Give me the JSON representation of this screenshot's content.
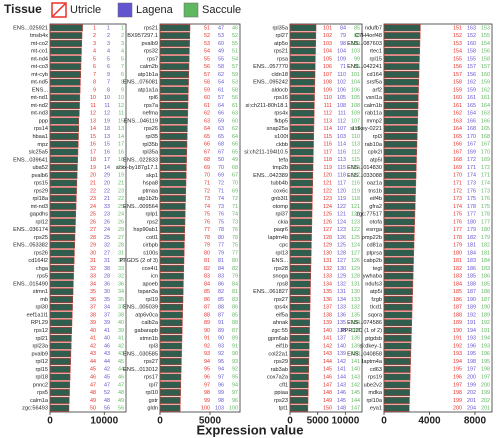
{
  "chart_data": {
    "type": "bar",
    "legend_title": "Tissue",
    "legend": [
      {
        "name": "Utricle",
        "color": "#e8302a"
      },
      {
        "name": "Lagena",
        "color": "#6355d0"
      },
      {
        "name": "Saccule",
        "color": "#5fb85f"
      }
    ],
    "xlabel": "Expression value",
    "bar_color": "#2f5d4e",
    "bar_edge": "#d9322b",
    "panels": [
      {
        "categories": [
          "ENS...025921",
          "tmsb4x",
          "mt-co2",
          "mt-co1",
          "mt-nd4",
          "mt-co3",
          "mt-cyb",
          "mt-nd5",
          "ENS...",
          "mt-nd1",
          "mt-nd2",
          "mt-nd3",
          "ppp",
          "rps14",
          "hbaa1",
          "mpz",
          "slc25a5",
          "ENS...039641",
          "uba52",
          "pvalb6",
          "rps15",
          "rps29",
          "rpl18a",
          "mt-nd3",
          "gapdhs",
          "rpl12",
          "ENS...036174",
          "rps25",
          "ENS...053382",
          "rps26",
          "cd164l2",
          "chga",
          "rps5",
          "ENS...015490",
          "stmn1",
          "mb",
          "rpl30",
          "eef1a1l1",
          "RPL29",
          "rps12",
          "rpl21",
          "rpl23a",
          "pvalb9",
          "rpl12",
          "rpl15",
          "rpl18",
          "pnnc2",
          "rps5",
          "calm1a",
          "zgc:56493"
        ],
        "values": [
          6000,
          5900,
          5850,
          5800,
          5750,
          5700,
          5650,
          5600,
          5550,
          5500,
          5450,
          5400,
          5300,
          5300,
          5250,
          5200,
          5150,
          5100,
          5050,
          5000,
          4950,
          4900,
          4850,
          4800,
          4750,
          4700,
          4650,
          4600,
          4550,
          4500,
          4450,
          4400,
          4350,
          4300,
          4250,
          4200,
          4150,
          4100,
          4050,
          4000,
          3950,
          3900,
          3850,
          3800,
          3750,
          3700,
          3650,
          3600,
          3550,
          3500
        ],
        "ranks": [
          [
            1,
            2,
            3,
            4,
            5,
            6,
            7,
            8,
            9,
            10,
            11,
            12,
            13,
            14,
            15,
            16,
            17,
            18,
            19,
            20,
            21,
            22,
            23,
            24,
            25,
            26,
            27,
            28,
            29,
            30,
            31,
            32,
            33,
            34,
            35,
            36,
            37,
            38,
            39,
            40,
            41,
            42,
            43,
            44,
            45,
            46,
            47,
            48,
            49,
            50
          ],
          [
            1,
            2,
            3,
            4,
            5,
            6,
            9,
            7,
            8,
            10,
            11,
            12,
            19,
            18,
            13,
            15,
            16,
            17,
            14,
            29,
            20,
            22,
            21,
            33,
            23,
            26,
            24,
            25,
            32,
            27,
            31,
            38,
            28,
            36,
            30,
            35,
            34,
            37,
            39,
            41,
            40,
            46,
            43,
            44,
            42,
            45,
            47,
            52,
            48,
            56
          ],
          [
            1,
            2,
            3,
            4,
            5,
            7,
            6,
            8,
            9,
            10,
            12,
            11,
            15,
            13,
            14,
            17,
            16,
            18,
            20,
            19,
            21,
            23,
            22,
            25,
            24,
            26,
            29,
            27,
            28,
            31,
            30,
            33,
            32,
            36,
            34,
            35,
            37,
            38,
            40,
            39,
            41,
            42,
            43,
            45,
            44,
            46,
            47,
            48,
            49,
            56
          ]
        ],
        "xlim": [
          0,
          14000
        ],
        "xticks": [
          0,
          10000
        ]
      },
      {
        "categories": [
          "rps21",
          "BX957297.1",
          "pvalb9",
          "rps32",
          "rps7",
          "calm2b",
          "atp1b1a",
          "ENS...076081",
          "atp1a1a",
          "rpl6",
          "rps7a",
          "nefma",
          "ENS...046119",
          "rps26",
          "rpl35",
          "rpl35b",
          "rpl35a",
          "ENS...022833",
          "si:xx-by187g17.1",
          "skp1",
          "hspa8",
          "ptmaa",
          "atp1b2b",
          "ENS...009564",
          "rplp1",
          "rps2",
          "hsp90ab1",
          "cotl1",
          "cirbpb",
          "s100s",
          "PTGDS (2 of 3)",
          "cox4i1",
          "icn",
          "apoeb",
          "tspan3a",
          "rpl19",
          "ENS...005039",
          "atp6v0ca",
          "calb2a",
          "gabarapb",
          "stmn1b",
          "rpl3",
          "ENS...030585",
          "rps27",
          "ENS...013012",
          "rps17",
          "rpl7",
          "rpl10",
          "gstr",
          "gldn"
        ],
        "values": [
          3000,
          2980,
          2960,
          2940,
          2920,
          2900,
          2880,
          2860,
          2840,
          2820,
          2800,
          2780,
          2760,
          2740,
          2720,
          2700,
          2680,
          2660,
          2640,
          2620,
          2600,
          2580,
          2560,
          2540,
          2520,
          2500,
          2480,
          2460,
          2440,
          2420,
          2400,
          2380,
          2360,
          2340,
          2320,
          2300,
          2280,
          2260,
          2240,
          2220,
          2200,
          2180,
          2160,
          2140,
          2120,
          2100,
          2080,
          2060,
          2040,
          2020
        ],
        "ranks": [
          [
            51,
            52,
            53,
            54,
            55,
            56,
            57,
            58,
            59,
            60,
            61,
            62,
            63,
            64,
            65,
            66,
            67,
            68,
            69,
            70,
            71,
            72,
            73,
            74,
            75,
            76,
            77,
            78,
            79,
            80,
            81,
            82,
            83,
            84,
            85,
            86,
            87,
            88,
            89,
            90,
            91,
            92,
            93,
            94,
            95,
            96,
            97,
            98,
            99,
            100
          ],
          [
            47,
            53,
            60,
            49,
            55,
            58,
            62,
            54,
            61,
            57,
            64,
            66,
            59,
            63,
            65,
            68,
            67,
            50,
            70,
            69,
            72,
            71,
            74,
            73,
            76,
            75,
            78,
            80,
            77,
            79,
            81,
            84,
            83,
            86,
            82,
            85,
            88,
            87,
            91,
            89,
            90,
            93,
            92,
            95,
            94,
            97,
            96,
            99,
            98,
            103
          ],
          [
            46,
            52,
            55,
            51,
            54,
            57,
            59,
            53,
            58,
            56,
            61,
            63,
            60,
            62,
            64,
            66,
            65,
            49,
            68,
            67,
            70,
            69,
            72,
            71,
            74,
            73,
            76,
            78,
            75,
            77,
            80,
            82,
            79,
            84,
            81,
            83,
            86,
            85,
            88,
            87,
            89,
            91,
            90,
            93,
            92,
            95,
            94,
            97,
            96,
            100
          ]
        ],
        "xlim": [
          0,
          8000
        ],
        "xticks": [
          0,
          5000
        ]
      },
      {
        "categories": [
          "rpl35a",
          "rpl27",
          "atp5o",
          "rps21",
          "rpsa",
          "ENS...057770",
          "cldn18",
          "ENS...095242",
          "aldocb",
          "rps16",
          "si:ch211-80h18.1",
          "rps4x",
          "fkbp5",
          "snap25a",
          "s100t",
          "ckbb",
          "si:ch211-194l10.5",
          "tefa",
          "tmp2b",
          "ENS...042389",
          "tubb4b",
          "cox6c",
          "gnb3l1",
          "otomp",
          "rpl37",
          "ckia",
          "paqr6",
          "laptm4b",
          "cpc",
          "rpl13",
          "ENS...",
          "rps28",
          "snoga",
          "rps8",
          "ENS...061827",
          "rps27",
          "rps4x",
          "eif5a",
          "ahnak",
          "zgc:55",
          "gpm6ab",
          "eif1b",
          "col22a1",
          "rps29",
          "rab3ab",
          "cox7a2a",
          "cfl1",
          "ppiaa",
          "rps23",
          "tpt1"
        ],
        "values": [
          4700,
          4670,
          4640,
          4610,
          4580,
          4550,
          4520,
          4490,
          4460,
          4430,
          4400,
          4370,
          4340,
          4310,
          4280,
          4250,
          4220,
          4190,
          4160,
          4130,
          4100,
          4070,
          4040,
          4010,
          3980,
          3950,
          3920,
          3890,
          3860,
          3830,
          3800,
          3770,
          3740,
          3710,
          3680,
          3650,
          3620,
          3590,
          3560,
          3530,
          3500,
          3470,
          3440,
          3410,
          3380,
          3350,
          3320,
          3290,
          3260,
          3230
        ],
        "ranks": [
          [
            101,
            102,
            103,
            104,
            105,
            106,
            107,
            108,
            109,
            110,
            111,
            112,
            113,
            114,
            115,
            116,
            117,
            118,
            119,
            120,
            121,
            122,
            123,
            124,
            125,
            126,
            127,
            128,
            129,
            130,
            131,
            132,
            133,
            134,
            135,
            136,
            137,
            138,
            139,
            140,
            141,
            142,
            143,
            144,
            145,
            146,
            147,
            148,
            149,
            150
          ],
          [
            84,
            79,
            98,
            104,
            109,
            71,
            110,
            102,
            106,
            105,
            108,
            111,
            112,
            107,
            103,
            114,
            116,
            113,
            115,
            118,
            117,
            120,
            119,
            122,
            121,
            124,
            123,
            126,
            125,
            128,
            127,
            130,
            129,
            132,
            131,
            134,
            133,
            136,
            135,
            138,
            137,
            140,
            139,
            142,
            141,
            144,
            143,
            146,
            145,
            148
          ],
          [
            85,
            88,
            100,
            103,
            99,
            65,
            101,
            104,
            106,
            105,
            108,
            109,
            107,
            111,
            110,
            113,
            112,
            115,
            114,
            117,
            116,
            119,
            118,
            121,
            120,
            123,
            122,
            125,
            124,
            127,
            126,
            129,
            128,
            131,
            130,
            133,
            132,
            135,
            134,
            137,
            136,
            139,
            138,
            141,
            140,
            143,
            142,
            145,
            144,
            147
          ]
        ],
        "xlim": [
          0,
          13000
        ],
        "xticks": [
          0,
          5000,
          10000
        ]
      },
      {
        "categories": [
          "ndufb7",
          "C7H4orf48",
          "ENS...087603",
          "rtec1",
          "rpl15",
          "ENS...042241",
          "cd164",
          "srsf5a",
          "arf2",
          "vsnl1a",
          "calm1b",
          "rab11a",
          "mmp2",
          "si:dkey-0221",
          "rpl3",
          "rab10a",
          "cplx2l",
          "atp5l",
          "ENS...014830",
          "ENS...033088",
          "oaz1a",
          "tns1b",
          "eif4b",
          "gfra2",
          "zgc:77517",
          "otofa",
          "esrrga",
          "pmp22b",
          "cd81a",
          "ptprsa",
          "cabp2b",
          "tegt",
          "ywhaba",
          "ndufs3",
          "atp5i",
          "fzgb",
          "tlcd1",
          "sqora",
          "ENS...074586",
          "PPR12C (1 of 2)",
          "ptgdsb",
          "si:dkey-1",
          "ENS...040858",
          "laptm4a",
          "cd63",
          "rps19",
          "ube2v2",
          "mdka",
          "rpl10a",
          "eya1"
        ],
        "values": [
          3200,
          3180,
          3160,
          3140,
          3120,
          3100,
          3080,
          3060,
          3040,
          3020,
          3000,
          2980,
          2960,
          2940,
          2920,
          2900,
          2880,
          2860,
          2840,
          2820,
          2800,
          2780,
          2760,
          2740,
          2720,
          2700,
          2680,
          2660,
          2640,
          2620,
          2600,
          2580,
          2560,
          2540,
          2520,
          2500,
          2480,
          2460,
          2440,
          2420,
          2400,
          2380,
          2360,
          2340,
          2320,
          2300,
          2280,
          2260,
          2240,
          2220
        ],
        "ranks": [
          [
            151,
            152,
            153,
            154,
            155,
            156,
            157,
            158,
            159,
            160,
            161,
            162,
            163,
            164,
            165,
            166,
            167,
            168,
            169,
            170,
            171,
            172,
            173,
            174,
            175,
            176,
            177,
            178,
            179,
            180,
            181,
            182,
            183,
            184,
            185,
            186,
            187,
            188,
            189,
            190,
            191,
            192,
            193,
            194,
            195,
            196,
            197,
            198,
            199,
            200
          ],
          [
            163,
            152,
            160,
            158,
            155,
            157,
            156,
            162,
            159,
            161,
            165,
            164,
            166,
            168,
            170,
            167,
            169,
            172,
            171,
            174,
            173,
            176,
            175,
            178,
            177,
            180,
            179,
            182,
            181,
            184,
            183,
            186,
            185,
            188,
            187,
            190,
            189,
            192,
            191,
            194,
            193,
            196,
            195,
            198,
            197,
            200,
            199,
            202,
            201,
            204
          ],
          [
            153,
            155,
            154,
            156,
            158,
            157,
            160,
            159,
            162,
            161,
            164,
            163,
            166,
            165,
            168,
            167,
            170,
            169,
            172,
            171,
            174,
            173,
            176,
            175,
            178,
            177,
            180,
            179,
            182,
            181,
            184,
            183,
            186,
            185,
            188,
            187,
            190,
            189,
            192,
            191,
            194,
            193,
            196,
            195,
            198,
            197,
            200,
            199,
            202,
            201
          ]
        ],
        "xlim": [
          0,
          9500
        ],
        "xticks": [
          0,
          4000,
          8000
        ]
      }
    ]
  }
}
